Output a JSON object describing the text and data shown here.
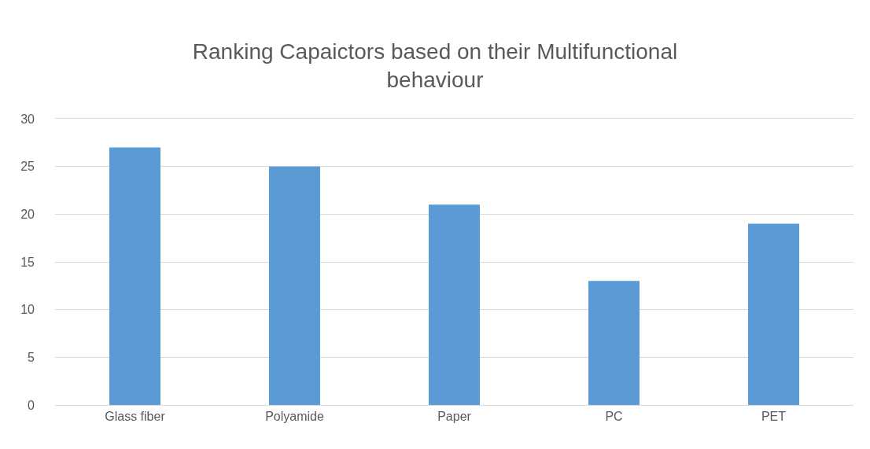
{
  "chart_data": {
    "type": "bar",
    "title": "Ranking Capaictors based on their Multifunctional behaviour",
    "categories": [
      "Glass fiber",
      "Polyamide",
      "Paper",
      "PC",
      "PET"
    ],
    "values": [
      27,
      25,
      21,
      13,
      19
    ],
    "color": "#5b9bd5",
    "ylim": [
      0,
      30
    ],
    "yticks": [
      0,
      5,
      10,
      15,
      20,
      25,
      30
    ],
    "grid": "y"
  }
}
